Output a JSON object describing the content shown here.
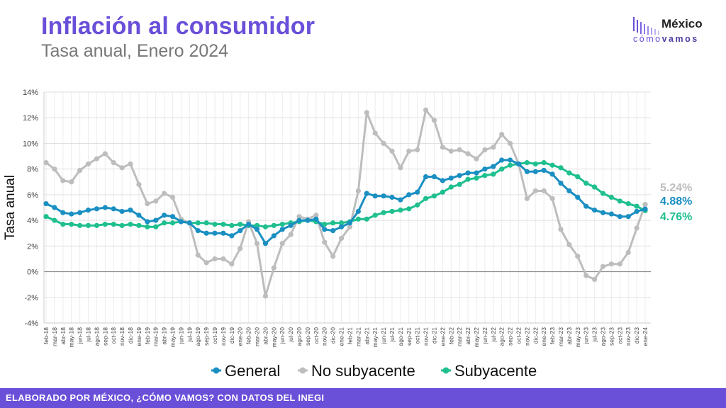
{
  "header": {
    "title": "Inflación al consumidor",
    "subtitle": "Tasa anual, Enero 2024"
  },
  "logo": {
    "word": "México",
    "sub_light": "cómo",
    "sub_bold": "vamos"
  },
  "footer": {
    "text": "ELABORADO POR MÉXICO, ¿CÓMO VAMOS? CON DATOS DEL INEGI"
  },
  "colors": {
    "general": "#1a8fc2",
    "no_subyacente": "#bdbdbd",
    "subyacente": "#1fbf8f",
    "accent": "#6a4fd9"
  },
  "chart_data": {
    "type": "line",
    "ylabel": "Tasa anual",
    "xlabel": "",
    "ylim": [
      -4,
      14
    ],
    "yticks": [
      "-4%",
      "-2%",
      "0%",
      "2%",
      "4%",
      "6%",
      "8%",
      "10%",
      "12%",
      "14%"
    ],
    "grid": true,
    "legend_position": "bottom",
    "categories": [
      "feb-18",
      "mar-18",
      "abr-18",
      "may-18",
      "jun-18",
      "jul-18",
      "ago-18",
      "sep-18",
      "oct-18",
      "nov-18",
      "dic-18",
      "ene-19",
      "feb-19",
      "mar-19",
      "abr-19",
      "may-19",
      "jun-19",
      "jul-19",
      "ago-19",
      "sep-19",
      "oct-19",
      "nov-19",
      "dic-19",
      "ene-20",
      "feb-20",
      "mar-20",
      "abr-20",
      "may-20",
      "jun-20",
      "jul-20",
      "ago-20",
      "sep-20",
      "oct-20",
      "nov-20",
      "dic-20",
      "ene-21",
      "feb-21",
      "mar-21",
      "abr-21",
      "may-21",
      "jun-21",
      "jul-21",
      "ago-21",
      "sep-21",
      "oct-21",
      "nov-21",
      "dic-21",
      "ene-22",
      "feb-22",
      "mar-22",
      "abr-22",
      "may-22",
      "jun-22",
      "jul-22",
      "ago-22",
      "sep-22",
      "oct-22",
      "nov-22",
      "dic-22",
      "ene-23",
      "feb-23",
      "mar-23",
      "abr-23",
      "may-23",
      "jun-23",
      "jul-23",
      "ago-23",
      "sep-23",
      "oct-23",
      "nov-23",
      "dic-23",
      "ene-24"
    ],
    "series": [
      {
        "name": "General",
        "color": "#1a8fc2",
        "values": [
          5.3,
          5.0,
          4.6,
          4.5,
          4.6,
          4.8,
          4.9,
          5.0,
          4.9,
          4.7,
          4.8,
          4.4,
          3.9,
          4.0,
          4.4,
          4.3,
          3.9,
          3.8,
          3.2,
          3.0,
          3.0,
          3.0,
          2.8,
          3.2,
          3.7,
          3.3,
          2.2,
          2.8,
          3.3,
          3.6,
          4.0,
          4.0,
          4.1,
          3.3,
          3.2,
          3.5,
          3.8,
          4.7,
          6.1,
          5.9,
          5.9,
          5.8,
          5.6,
          6.0,
          6.2,
          7.4,
          7.4,
          7.1,
          7.3,
          7.5,
          7.7,
          7.7,
          8.0,
          8.2,
          8.7,
          8.7,
          8.4,
          7.8,
          7.8,
          7.9,
          7.6,
          6.9,
          6.3,
          5.8,
          5.1,
          4.8,
          4.6,
          4.5,
          4.3,
          4.3,
          4.7,
          4.88
        ],
        "end_label": "4.88%"
      },
      {
        "name": "No subyacente",
        "color": "#bdbdbd",
        "values": [
          8.5,
          8.0,
          7.1,
          7.0,
          7.9,
          8.4,
          8.8,
          9.2,
          8.5,
          8.1,
          8.4,
          6.8,
          5.3,
          5.5,
          6.1,
          5.8,
          4.1,
          3.8,
          1.3,
          0.7,
          1.0,
          1.0,
          0.6,
          1.8,
          3.9,
          2.2,
          -1.9,
          0.3,
          2.2,
          2.9,
          4.3,
          4.1,
          4.4,
          2.3,
          1.2,
          2.6,
          3.5,
          6.3,
          12.4,
          10.8,
          10.0,
          9.4,
          8.1,
          9.4,
          9.5,
          12.6,
          11.8,
          9.7,
          9.4,
          9.5,
          9.2,
          8.8,
          9.5,
          9.7,
          10.7,
          10.0,
          8.4,
          5.7,
          6.3,
          6.3,
          5.7,
          3.3,
          2.1,
          1.2,
          -0.3,
          -0.6,
          0.4,
          0.6,
          0.6,
          1.5,
          3.4,
          5.24
        ],
        "end_label": "5.24%"
      },
      {
        "name": "Subyacente",
        "color": "#1fbf8f",
        "values": [
          4.3,
          4.0,
          3.7,
          3.7,
          3.6,
          3.6,
          3.6,
          3.7,
          3.7,
          3.6,
          3.7,
          3.6,
          3.5,
          3.5,
          3.8,
          3.8,
          3.9,
          3.8,
          3.8,
          3.8,
          3.7,
          3.7,
          3.6,
          3.7,
          3.6,
          3.6,
          3.5,
          3.6,
          3.7,
          3.8,
          3.9,
          4.0,
          3.9,
          3.7,
          3.8,
          3.8,
          3.9,
          4.1,
          4.1,
          4.4,
          4.6,
          4.7,
          4.8,
          4.9,
          5.2,
          5.7,
          5.9,
          6.2,
          6.6,
          6.8,
          7.2,
          7.3,
          7.5,
          7.6,
          8.0,
          8.3,
          8.4,
          8.5,
          8.4,
          8.5,
          8.3,
          8.1,
          7.7,
          7.4,
          6.9,
          6.6,
          6.1,
          5.8,
          5.5,
          5.3,
          5.1,
          4.76
        ],
        "end_label": "4.76%"
      }
    ]
  }
}
